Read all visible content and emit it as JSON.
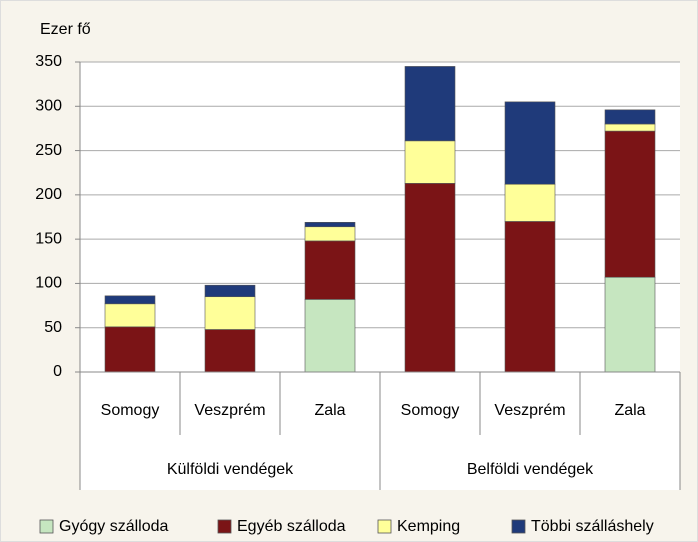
{
  "chart_data": {
    "type": "bar",
    "stacked": true,
    "y_axis_label": "Ezer fő",
    "categories": [
      "Somogy",
      "Veszprém",
      "Zala",
      "Somogy",
      "Veszprém",
      "Zala"
    ],
    "groups": [
      "Külföldi vendégek",
      "Belföldi vendégek"
    ],
    "series": [
      {
        "name": "Gyógy szálloda",
        "color": "#c6e6c0",
        "values": [
          0,
          0,
          82,
          0,
          0,
          107
        ]
      },
      {
        "name": "Egyéb szálloda",
        "color": "#7b1416",
        "values": [
          51,
          48,
          66,
          213,
          170,
          165
        ]
      },
      {
        "name": "Kemping",
        "color": "#ffff99",
        "values": [
          26,
          37,
          16,
          48,
          42,
          8
        ]
      },
      {
        "name": "Többi szálláshely",
        "color": "#1f3a7a",
        "values": [
          9,
          13,
          5,
          84,
          93,
          16
        ]
      }
    ],
    "ylim": [
      0,
      350
    ],
    "yticks": [
      0,
      50,
      100,
      150,
      200,
      250,
      300,
      350
    ],
    "grid": true,
    "legend": "bottom"
  }
}
